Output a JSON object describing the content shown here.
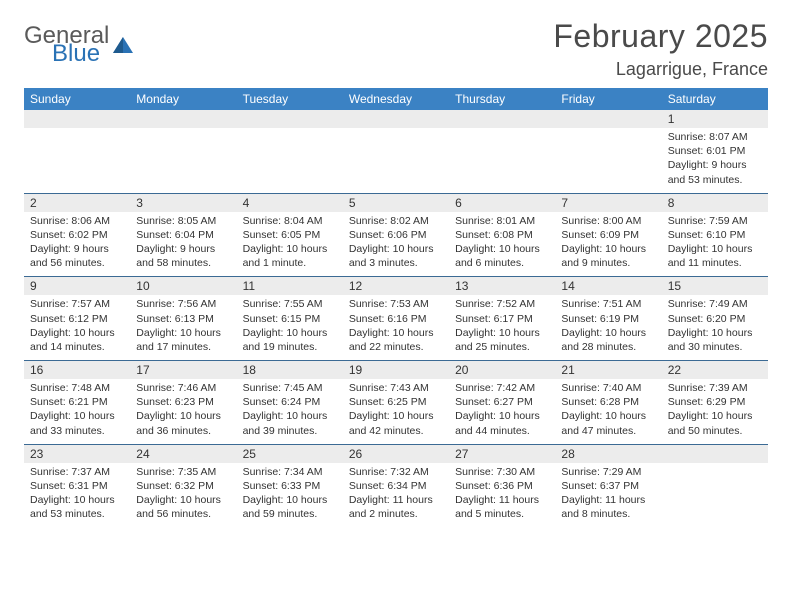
{
  "logo": {
    "general": "General",
    "blue": "Blue"
  },
  "title": "February 2025",
  "location": "Lagarrigue, France",
  "colors": {
    "header_bg": "#3b82c4",
    "header_text": "#ffffff",
    "border": "#3b6a94",
    "daynum_bg": "#ececec",
    "text": "#333333",
    "logo_gray": "#5a5a5a",
    "logo_blue": "#2a72b5"
  },
  "font": {
    "family": "Arial",
    "title_size": 32,
    "location_size": 18,
    "header_size": 12,
    "cell_size": 10.5
  },
  "days": [
    "Sunday",
    "Monday",
    "Tuesday",
    "Wednesday",
    "Thursday",
    "Friday",
    "Saturday"
  ],
  "weeks": [
    [
      null,
      null,
      null,
      null,
      null,
      null,
      {
        "n": "1",
        "sunrise": "8:07 AM",
        "sunset": "6:01 PM",
        "daylight": "9 hours and 53 minutes."
      }
    ],
    [
      {
        "n": "2",
        "sunrise": "8:06 AM",
        "sunset": "6:02 PM",
        "daylight": "9 hours and 56 minutes."
      },
      {
        "n": "3",
        "sunrise": "8:05 AM",
        "sunset": "6:04 PM",
        "daylight": "9 hours and 58 minutes."
      },
      {
        "n": "4",
        "sunrise": "8:04 AM",
        "sunset": "6:05 PM",
        "daylight": "10 hours and 1 minute."
      },
      {
        "n": "5",
        "sunrise": "8:02 AM",
        "sunset": "6:06 PM",
        "daylight": "10 hours and 3 minutes."
      },
      {
        "n": "6",
        "sunrise": "8:01 AM",
        "sunset": "6:08 PM",
        "daylight": "10 hours and 6 minutes."
      },
      {
        "n": "7",
        "sunrise": "8:00 AM",
        "sunset": "6:09 PM",
        "daylight": "10 hours and 9 minutes."
      },
      {
        "n": "8",
        "sunrise": "7:59 AM",
        "sunset": "6:10 PM",
        "daylight": "10 hours and 11 minutes."
      }
    ],
    [
      {
        "n": "9",
        "sunrise": "7:57 AM",
        "sunset": "6:12 PM",
        "daylight": "10 hours and 14 minutes."
      },
      {
        "n": "10",
        "sunrise": "7:56 AM",
        "sunset": "6:13 PM",
        "daylight": "10 hours and 17 minutes."
      },
      {
        "n": "11",
        "sunrise": "7:55 AM",
        "sunset": "6:15 PM",
        "daylight": "10 hours and 19 minutes."
      },
      {
        "n": "12",
        "sunrise": "7:53 AM",
        "sunset": "6:16 PM",
        "daylight": "10 hours and 22 minutes."
      },
      {
        "n": "13",
        "sunrise": "7:52 AM",
        "sunset": "6:17 PM",
        "daylight": "10 hours and 25 minutes."
      },
      {
        "n": "14",
        "sunrise": "7:51 AM",
        "sunset": "6:19 PM",
        "daylight": "10 hours and 28 minutes."
      },
      {
        "n": "15",
        "sunrise": "7:49 AM",
        "sunset": "6:20 PM",
        "daylight": "10 hours and 30 minutes."
      }
    ],
    [
      {
        "n": "16",
        "sunrise": "7:48 AM",
        "sunset": "6:21 PM",
        "daylight": "10 hours and 33 minutes."
      },
      {
        "n": "17",
        "sunrise": "7:46 AM",
        "sunset": "6:23 PM",
        "daylight": "10 hours and 36 minutes."
      },
      {
        "n": "18",
        "sunrise": "7:45 AM",
        "sunset": "6:24 PM",
        "daylight": "10 hours and 39 minutes."
      },
      {
        "n": "19",
        "sunrise": "7:43 AM",
        "sunset": "6:25 PM",
        "daylight": "10 hours and 42 minutes."
      },
      {
        "n": "20",
        "sunrise": "7:42 AM",
        "sunset": "6:27 PM",
        "daylight": "10 hours and 44 minutes."
      },
      {
        "n": "21",
        "sunrise": "7:40 AM",
        "sunset": "6:28 PM",
        "daylight": "10 hours and 47 minutes."
      },
      {
        "n": "22",
        "sunrise": "7:39 AM",
        "sunset": "6:29 PM",
        "daylight": "10 hours and 50 minutes."
      }
    ],
    [
      {
        "n": "23",
        "sunrise": "7:37 AM",
        "sunset": "6:31 PM",
        "daylight": "10 hours and 53 minutes."
      },
      {
        "n": "24",
        "sunrise": "7:35 AM",
        "sunset": "6:32 PM",
        "daylight": "10 hours and 56 minutes."
      },
      {
        "n": "25",
        "sunrise": "7:34 AM",
        "sunset": "6:33 PM",
        "daylight": "10 hours and 59 minutes."
      },
      {
        "n": "26",
        "sunrise": "7:32 AM",
        "sunset": "6:34 PM",
        "daylight": "11 hours and 2 minutes."
      },
      {
        "n": "27",
        "sunrise": "7:30 AM",
        "sunset": "6:36 PM",
        "daylight": "11 hours and 5 minutes."
      },
      {
        "n": "28",
        "sunrise": "7:29 AM",
        "sunset": "6:37 PM",
        "daylight": "11 hours and 8 minutes."
      },
      null
    ]
  ],
  "labels": {
    "sunrise": "Sunrise:",
    "sunset": "Sunset:",
    "daylight": "Daylight:"
  }
}
